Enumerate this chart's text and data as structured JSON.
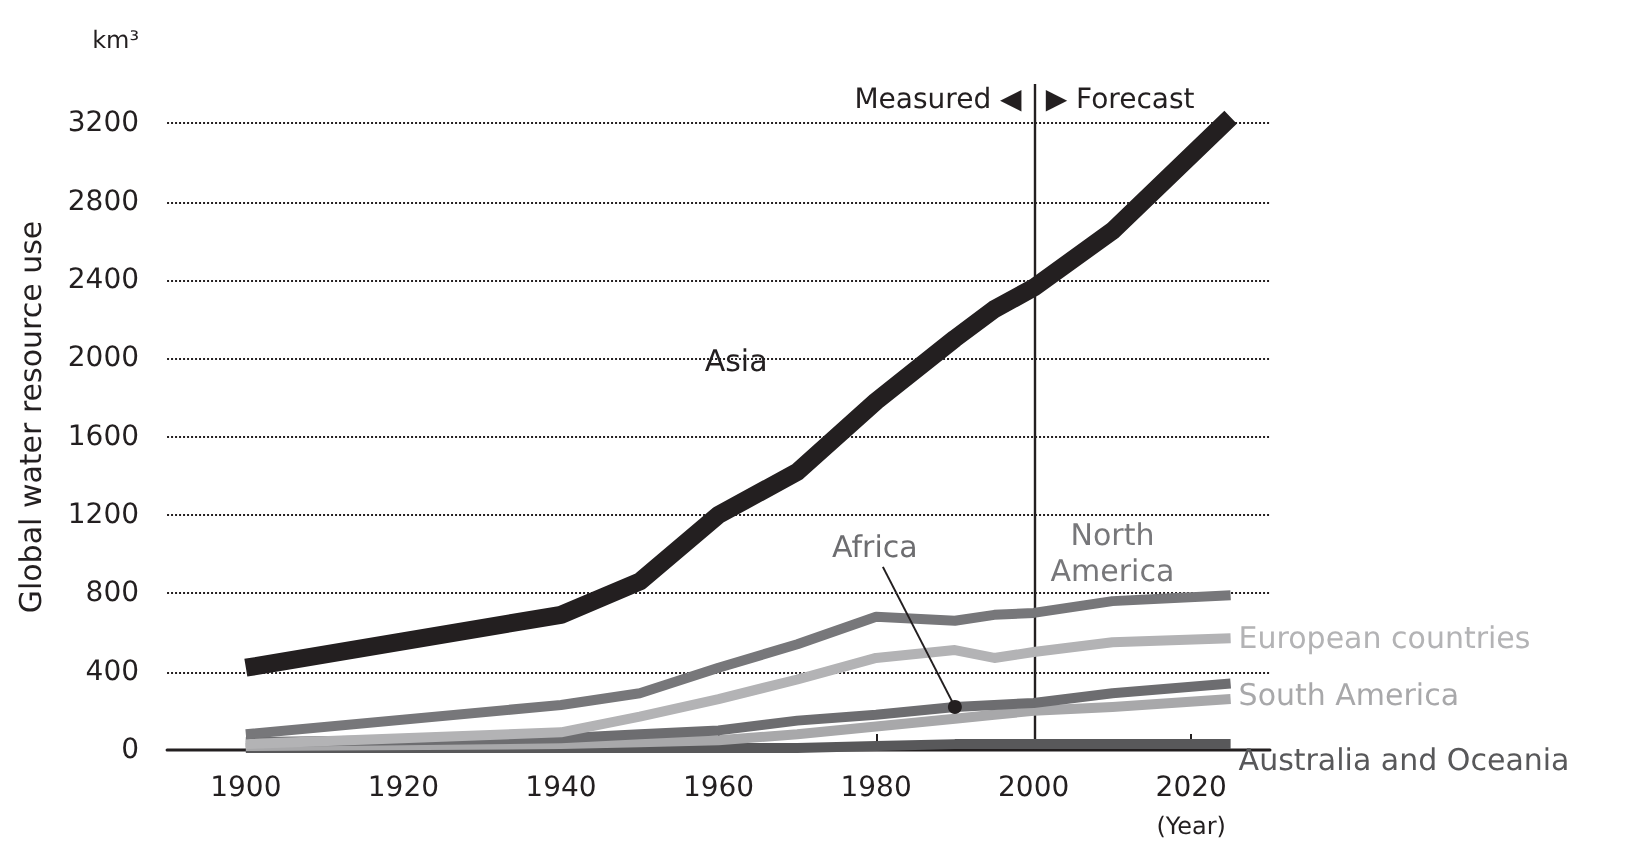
{
  "chart_data": {
    "type": "line",
    "ylabel": "Global water resource use",
    "xlabel": "(Year)",
    "x": [
      1900,
      1940,
      1950,
      1960,
      1970,
      1980,
      1990,
      1995,
      2000,
      2010,
      2025
    ],
    "series": [
      {
        "name": "Asia",
        "color": "#231f20",
        "values": [
          420,
          690,
          860,
          1200,
          1420,
          1780,
          2100,
          2250,
          2360,
          2650,
          3230
        ]
      },
      {
        "name": "North America",
        "color": "#77777a",
        "values": [
          80,
          230,
          290,
          420,
          540,
          680,
          660,
          690,
          700,
          760,
          790
        ]
      },
      {
        "name": "European countries",
        "color": "#b3b3b5",
        "values": [
          30,
          90,
          170,
          260,
          360,
          470,
          510,
          470,
          500,
          550,
          570
        ]
      },
      {
        "name": "Africa",
        "color": "#6d6d70",
        "values": [
          40,
          60,
          80,
          100,
          150,
          180,
          220,
          230,
          240,
          290,
          340
        ]
      },
      {
        "name": "South America",
        "color": "#a8a8aa",
        "values": [
          20,
          30,
          40,
          50,
          80,
          120,
          160,
          180,
          200,
          220,
          260
        ]
      },
      {
        "name": "Australia and Oceania",
        "color": "#58585a",
        "values": [
          10,
          10,
          10,
          10,
          10,
          20,
          30,
          30,
          30,
          30,
          30
        ]
      }
    ],
    "xlim": [
      1890,
      2030
    ],
    "xticks": [
      1900,
      1920,
      1940,
      1960,
      1980,
      2000,
      2020
    ],
    "ylim": [
      0,
      3400
    ],
    "yticks": [
      0,
      400,
      800,
      1200,
      1600,
      2000,
      2400,
      2800,
      3200
    ],
    "grid": "y",
    "legend": false,
    "marker": "none",
    "line_style": "solid",
    "ref_lines": [
      {
        "axis": "x",
        "value": 2000,
        "color": "#231f20"
      }
    ],
    "annotations": [
      "Measured ◀",
      "▶ Forecast",
      "km³"
    ]
  }
}
